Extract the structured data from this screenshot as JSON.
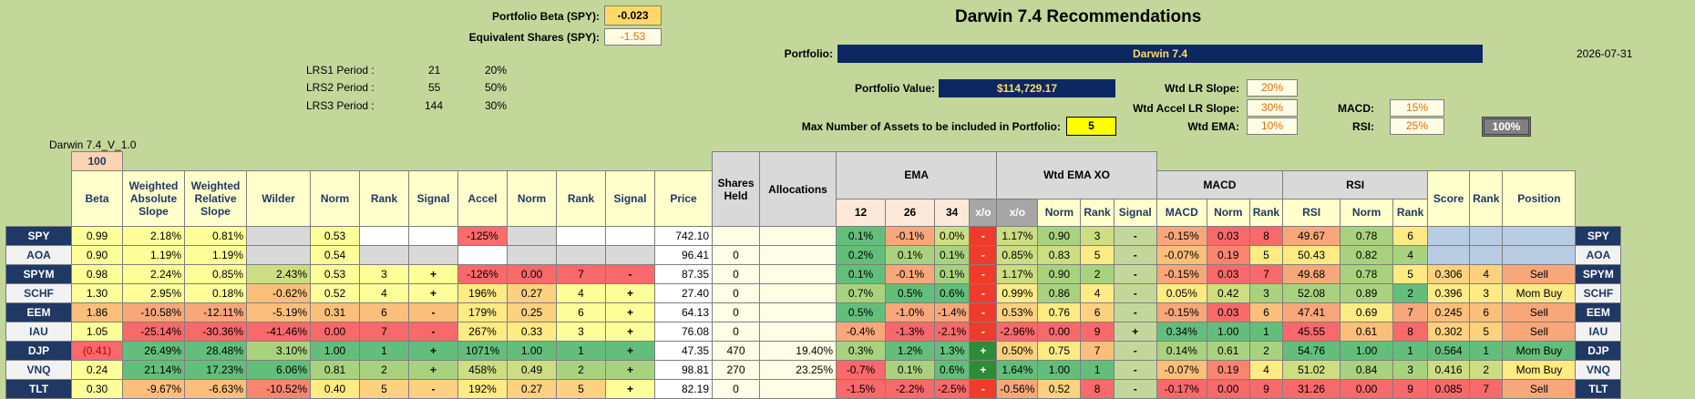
{
  "header": {
    "title": "Darwin 7.4 Recommendations",
    "portfolio_beta_label": "Portfolio Beta (SPY):",
    "portfolio_beta_value": "-0.023",
    "equiv_shares_label": "Equivalent Shares (SPY):",
    "equiv_shares_value": "-1.53",
    "portfolio_label": "Portfolio:",
    "portfolio_value": "Darwin 7.4",
    "date": "2026-07-31",
    "portfolio_value_label": "Portfolio Value:",
    "portfolio_value_amount": "$114,729.17",
    "max_assets_label": "Max Number of Assets to be included in Portfolio:",
    "max_assets_value": "5",
    "version": "Darwin 7.4_V_1.0",
    "lrs": [
      {
        "label": "LRS1 Period :",
        "period": "21",
        "pct": "20%"
      },
      {
        "label": "LRS2 Period :",
        "period": "55",
        "pct": "50%"
      },
      {
        "label": "LRS3 Period :",
        "period": "144",
        "pct": "30%"
      }
    ],
    "weights": {
      "wtd_lr_slope_label": "Wtd LR Slope:",
      "wtd_lr_slope": "20%",
      "wtd_accel_label": "Wtd Accel LR Slope:",
      "wtd_accel": "30%",
      "wtd_ema_label": "Wtd EMA:",
      "wtd_ema": "10%",
      "macd_label": "MACD:",
      "macd": "15%",
      "rsi_label": "RSI:",
      "rsi": "25%",
      "total": "100%"
    }
  },
  "columns": {
    "hundred": "100",
    "beta": "Beta",
    "was": "Weighted Absolute Slope",
    "wrs": "Weighted Relative Slope",
    "wilder": "Wilder",
    "norm": "Norm",
    "rank": "Rank",
    "signal": "Signal",
    "accel": "Accel",
    "price": "Price",
    "shares": "Shares Held",
    "alloc": "Allocations",
    "ema": "EMA",
    "e12": "12",
    "e26": "26",
    "e34": "34",
    "xo": "x/o",
    "wtd_ema_xo": "Wtd EMA XO",
    "macd_grp": "MACD",
    "macd": "MACD",
    "rsi_grp": "RSI",
    "rsi": "RSI",
    "score": "Score",
    "position": "Position"
  },
  "rows": [
    {
      "t": "SPY",
      "beta": "0.99",
      "was": "2.18%",
      "wrs": "0.81%",
      "wilder": "",
      "n1": "0.53",
      "r1": "",
      "s1": "",
      "accel": "-125%",
      "n2": "",
      "r2": "",
      "s2": "",
      "price": "742.10",
      "shares": "",
      "alloc": "",
      "e12": "0.1%",
      "e26": "-0.1%",
      "e34": "0.0%",
      "xo": "-",
      "wx": "1.17%",
      "wxn": "0.90",
      "wxr": "3",
      "wxs": "-",
      "macd": "-0.15%",
      "mn": "0.03",
      "mr": "8",
      "rsi": "49.67",
      "rn": "0.78",
      "rr": "6",
      "score": "",
      "rank": "",
      "pos": "",
      "c": {
        "beta": "#ffff99",
        "was": "#ffff99",
        "wrs": "#ffff99",
        "wilder": "#d9d9d9",
        "n1": "#ffff99",
        "r1": "#ffffff",
        "s1": "#ffffff",
        "accel": "#ff6b6b",
        "n2": "#d9d9d9",
        "r2": "#ffffff",
        "s2": "#ffffff",
        "price": "#ffffff",
        "shares": "#fffde6",
        "alloc": "#fffde6",
        "e12": "#63be7b",
        "e26": "#f8a77b",
        "e34": "#ccdd82",
        "wx": "#ccdd82",
        "wxn": "#a9d27f",
        "wxr": "#ccdd82",
        "macd": "#f8a77b",
        "mn": "#f8696b",
        "mr": "#f8696b",
        "rsi": "#f8a77b",
        "rn": "#a9d27f",
        "rr": "#ffeb84",
        "score": "#b8cce4",
        "rank": "#b8cce4",
        "pos": "#b8cce4"
      }
    },
    {
      "t": "AOA",
      "beta": "0.90",
      "was": "1.19%",
      "wrs": "1.19%",
      "wilder": "",
      "n1": "0.54",
      "r1": "",
      "s1": "",
      "accel": "",
      "n2": "",
      "r2": "",
      "s2": "",
      "price": "96.41",
      "shares": "0",
      "alloc": "",
      "e12": "0.2%",
      "e26": "0.1%",
      "e34": "0.1%",
      "xo": "-",
      "wx": "0.85%",
      "wxn": "0.83",
      "wxr": "5",
      "wxs": "-",
      "macd": "-0.07%",
      "mn": "0.19",
      "mr": "5",
      "rsi": "50.43",
      "rn": "0.82",
      "rr": "4",
      "score": "",
      "rank": "",
      "pos": "",
      "alt": true,
      "c": {
        "beta": "#ffff99",
        "was": "#ffff99",
        "wrs": "#ffff99",
        "wilder": "#d9d9d9",
        "n1": "#ffff99",
        "r1": "#d9d9d9",
        "s1": "#d9d9d9",
        "accel": "#ffffff",
        "n2": "#d9d9d9",
        "r2": "#d9d9d9",
        "s2": "#d9d9d9",
        "price": "#ffffff",
        "shares": "#fffde6",
        "alloc": "#fffde6",
        "e12": "#63be7b",
        "e26": "#a9d27f",
        "e34": "#a9d27f",
        "wx": "#ccdd82",
        "wxn": "#ccdd82",
        "wxr": "#ffeb84",
        "macd": "#fcbf7b",
        "mn": "#f98570",
        "mr": "#ffeb84",
        "rsi": "#ffeb84",
        "rn": "#a9d27f",
        "rr": "#a9d27f",
        "score": "#b8cce4",
        "rank": "#b8cce4",
        "pos": "#b8cce4"
      }
    },
    {
      "t": "SPYM",
      "beta": "0.98",
      "was": "2.24%",
      "wrs": "0.85%",
      "wilder": "2.43%",
      "n1": "0.53",
      "r1": "3",
      "s1": "+",
      "accel": "-126%",
      "n2": "0.00",
      "r2": "7",
      "s2": "-",
      "price": "87.35",
      "shares": "0",
      "alloc": "",
      "e12": "0.1%",
      "e26": "-0.1%",
      "e34": "0.1%",
      "xo": "-",
      "wx": "1.17%",
      "wxn": "0.90",
      "wxr": "2",
      "wxs": "-",
      "macd": "-0.15%",
      "mn": "0.03",
      "mr": "7",
      "rsi": "49.68",
      "rn": "0.78",
      "rr": "5",
      "score": "0.306",
      "rank": "4",
      "pos": "Sell",
      "c": {
        "beta": "#ffff99",
        "was": "#ffff99",
        "wrs": "#ffff99",
        "wilder": "#ccdd82",
        "n1": "#ffff99",
        "r1": "#ffff99",
        "s1": "#ffff99",
        "accel": "#f8696b",
        "n2": "#f8696b",
        "r2": "#f8696b",
        "s2": "#f8696b",
        "price": "#ffffff",
        "shares": "#fffde6",
        "alloc": "#fffde6",
        "e12": "#63be7b",
        "e26": "#f8a77b",
        "e34": "#a9d27f",
        "wx": "#ccdd82",
        "wxn": "#a9d27f",
        "wxr": "#a9d27f",
        "macd": "#f8a77b",
        "mn": "#f8696b",
        "mr": "#f8696b",
        "rsi": "#f8a77b",
        "rn": "#a9d27f",
        "rr": "#ffeb84",
        "score": "#fdd17f",
        "rank": "#fdd17f",
        "pos": "#f8a77b"
      }
    },
    {
      "t": "SCHF",
      "beta": "1.30",
      "was": "2.95%",
      "wrs": "0.18%",
      "wilder": "-0.62%",
      "n1": "0.52",
      "r1": "4",
      "s1": "+",
      "accel": "196%",
      "n2": "0.27",
      "r2": "4",
      "s2": "+",
      "price": "27.40",
      "shares": "0",
      "alloc": "",
      "e12": "0.7%",
      "e26": "0.5%",
      "e34": "0.6%",
      "xo": "-",
      "wx": "0.99%",
      "wxn": "0.86",
      "wxr": "4",
      "wxs": "-",
      "macd": "0.05%",
      "mn": "0.42",
      "mr": "3",
      "rsi": "52.08",
      "rn": "0.89",
      "rr": "2",
      "score": "0.396",
      "rank": "3",
      "pos": "Mom Buy",
      "alt": true,
      "c": {
        "beta": "#ffff99",
        "was": "#ffff99",
        "wrs": "#ffff99",
        "wilder": "#fcbf7b",
        "n1": "#ffff99",
        "r1": "#ffff99",
        "s1": "#ffff99",
        "accel": "#ffeb84",
        "n2": "#fdd17f",
        "r2": "#ffff99",
        "s2": "#ffff99",
        "price": "#ffffff",
        "shares": "#fffde6",
        "alloc": "#fffde6",
        "e12": "#a9d27f",
        "e26": "#63be7b",
        "e34": "#63be7b",
        "wx": "#ffeb84",
        "wxn": "#a9d27f",
        "wxr": "#ffeb84",
        "macd": "#ffeb84",
        "mn": "#ccdd82",
        "mr": "#a9d27f",
        "rsi": "#a9d27f",
        "rn": "#a9d27f",
        "rr": "#63be7b",
        "score": "#ffeb84",
        "rank": "#ffeb84",
        "pos": "#ffeb84"
      }
    },
    {
      "t": "EEM",
      "beta": "1.86",
      "was": "-10.58%",
      "wrs": "-12.11%",
      "wilder": "-5.19%",
      "n1": "0.31",
      "r1": "6",
      "s1": "-",
      "accel": "179%",
      "n2": "0.25",
      "r2": "6",
      "s2": "+",
      "price": "64.13",
      "shares": "0",
      "alloc": "",
      "e12": "0.5%",
      "e26": "-1.0%",
      "e34": "-1.4%",
      "xo": "-",
      "wx": "0.53%",
      "wxn": "0.76",
      "wxr": "6",
      "wxs": "-",
      "macd": "-0.15%",
      "mn": "0.03",
      "mr": "6",
      "rsi": "47.41",
      "rn": "0.69",
      "rr": "7",
      "score": "0.245",
      "rank": "6",
      "pos": "Sell",
      "c": {
        "beta": "#fcbf7b",
        "was": "#f8a77b",
        "wrs": "#f8a77b",
        "wilder": "#fcbf7b",
        "n1": "#fcbf7b",
        "r1": "#fcbf7b",
        "s1": "#fcbf7b",
        "accel": "#ffeb84",
        "n2": "#fdd17f",
        "r2": "#ffff99",
        "s2": "#ffff99",
        "price": "#ffffff",
        "shares": "#fffde6",
        "alloc": "#fffde6",
        "e12": "#63be7b",
        "e26": "#f8a77b",
        "e34": "#f8a77b",
        "wx": "#fdd17f",
        "wxn": "#ffeb84",
        "wxr": "#fdd17f",
        "macd": "#f8a77b",
        "mn": "#f8696b",
        "mr": "#fcbf7b",
        "rsi": "#f8a77b",
        "rn": "#ffeb84",
        "rr": "#f8a77b",
        "score": "#fcbf7b",
        "rank": "#fcbf7b",
        "pos": "#f8a77b"
      }
    },
    {
      "t": "IAU",
      "beta": "1.05",
      "was": "-25.14%",
      "wrs": "-30.36%",
      "wilder": "-41.46%",
      "n1": "0.00",
      "r1": "7",
      "s1": "-",
      "accel": "267%",
      "n2": "0.33",
      "r2": "3",
      "s2": "+",
      "price": "76.08",
      "shares": "0",
      "alloc": "",
      "e12": "-0.4%",
      "e26": "-1.3%",
      "e34": "-2.1%",
      "xo": "-",
      "wx": "-2.96%",
      "wxn": "0.00",
      "wxr": "9",
      "wxs": "+",
      "macd": "0.34%",
      "mn": "1.00",
      "mr": "1",
      "rsi": "45.55",
      "rn": "0.61",
      "rr": "8",
      "score": "0.302",
      "rank": "5",
      "pos": "Sell",
      "alt": true,
      "c": {
        "beta": "#ffff99",
        "was": "#f8696b",
        "wrs": "#f8696b",
        "wilder": "#f8696b",
        "n1": "#f8696b",
        "r1": "#f8696b",
        "s1": "#f8696b",
        "accel": "#ffeb84",
        "n2": "#ffeb84",
        "r2": "#ffff99",
        "s2": "#ffff99",
        "price": "#ffffff",
        "shares": "#fffde6",
        "alloc": "#fffde6",
        "e12": "#f8a77b",
        "e26": "#f8696b",
        "e34": "#f8696b",
        "wx": "#f8696b",
        "wxn": "#f8696b",
        "wxr": "#f8696b",
        "macd": "#63be7b",
        "mn": "#63be7b",
        "mr": "#63be7b",
        "rsi": "#f8696b",
        "rn": "#fcbf7b",
        "rr": "#f8696b",
        "score": "#fdd17f",
        "rank": "#fdd17f",
        "pos": "#f8a77b"
      }
    },
    {
      "t": "DJP",
      "beta": "(0.41)",
      "was": "26.49%",
      "wrs": "28.48%",
      "wilder": "3.10%",
      "n1": "1.00",
      "r1": "1",
      "s1": "+",
      "accel": "1071%",
      "n2": "1.00",
      "r2": "1",
      "s2": "+",
      "price": "47.35",
      "shares": "470",
      "alloc": "19.40%",
      "e12": "0.3%",
      "e26": "1.2%",
      "e34": "1.3%",
      "xo": "+",
      "wx": "0.50%",
      "wxn": "0.75",
      "wxr": "7",
      "wxs": "-",
      "macd": "0.14%",
      "mn": "0.61",
      "mr": "2",
      "rsi": "54.76",
      "rn": "1.00",
      "rr": "1",
      "score": "0.564",
      "rank": "1",
      "pos": "Mom Buy",
      "neg": true,
      "c": {
        "beta": "#f8696b",
        "was": "#63be7b",
        "wrs": "#63be7b",
        "wilder": "#a9d27f",
        "n1": "#63be7b",
        "r1": "#63be7b",
        "s1": "#63be7b",
        "accel": "#63be7b",
        "n2": "#63be7b",
        "r2": "#63be7b",
        "s2": "#63be7b",
        "price": "#ffffff",
        "shares": "#fffde6",
        "alloc": "#fffde6",
        "e12": "#a9d27f",
        "e26": "#63be7b",
        "e34": "#63be7b",
        "wx": "#fdd17f",
        "wxn": "#ffeb84",
        "wxr": "#fcbf7b",
        "macd": "#a9d27f",
        "mn": "#a9d27f",
        "mr": "#a9d27f",
        "rsi": "#63be7b",
        "rn": "#63be7b",
        "rr": "#63be7b",
        "score": "#63be7b",
        "rank": "#63be7b",
        "pos": "#63be7b"
      }
    },
    {
      "t": "VNQ",
      "beta": "0.24",
      "was": "21.14%",
      "wrs": "17.23%",
      "wilder": "6.06%",
      "n1": "0.81",
      "r1": "2",
      "s1": "+",
      "accel": "458%",
      "n2": "0.49",
      "r2": "2",
      "s2": "+",
      "price": "98.81",
      "shares": "270",
      "alloc": "23.25%",
      "e12": "-0.7%",
      "e26": "0.1%",
      "e34": "0.6%",
      "xo": "+",
      "wx": "1.64%",
      "wxn": "1.00",
      "wxr": "1",
      "wxs": "-",
      "macd": "-0.07%",
      "mn": "0.19",
      "mr": "4",
      "rsi": "51.02",
      "rn": "0.84",
      "rr": "3",
      "score": "0.416",
      "rank": "2",
      "pos": "Mom Buy",
      "alt": true,
      "c": {
        "beta": "#ffff99",
        "was": "#63be7b",
        "wrs": "#63be7b",
        "wilder": "#63be7b",
        "n1": "#a9d27f",
        "r1": "#a9d27f",
        "s1": "#a9d27f",
        "accel": "#ccdd82",
        "n2": "#ccdd82",
        "r2": "#a9d27f",
        "s2": "#a9d27f",
        "price": "#ffffff",
        "shares": "#fffde6",
        "alloc": "#fffde6",
        "e12": "#f8696b",
        "e26": "#a9d27f",
        "e34": "#63be7b",
        "wx": "#63be7b",
        "wxn": "#63be7b",
        "wxr": "#63be7b",
        "macd": "#fcbf7b",
        "mn": "#f98570",
        "mr": "#ffeb84",
        "rsi": "#ccdd82",
        "rn": "#a9d27f",
        "rr": "#a9d27f",
        "score": "#ccdd82",
        "rank": "#ccdd82",
        "pos": "#ffeb84"
      }
    },
    {
      "t": "TLT",
      "beta": "0.30",
      "was": "-9.67%",
      "wrs": "-6.63%",
      "wilder": "-10.52%",
      "n1": "0.40",
      "r1": "5",
      "s1": "-",
      "accel": "192%",
      "n2": "0.27",
      "r2": "5",
      "s2": "+",
      "price": "82.19",
      "shares": "0",
      "alloc": "",
      "e12": "-1.5%",
      "e26": "-2.2%",
      "e34": "-2.5%",
      "xo": "-",
      "wx": "-0.56%",
      "wxn": "0.52",
      "wxr": "8",
      "wxs": "-",
      "macd": "-0.17%",
      "mn": "0.00",
      "mr": "9",
      "rsi": "31.26",
      "rn": "0.00",
      "rr": "9",
      "score": "0.085",
      "rank": "7",
      "pos": "Sell",
      "c": {
        "beta": "#ffff99",
        "was": "#fcbf7b",
        "wrs": "#fcbf7b",
        "wilder": "#f98570",
        "n1": "#ffeb84",
        "r1": "#fdd17f",
        "s1": "#fdd17f",
        "accel": "#ffeb84",
        "n2": "#fdd17f",
        "r2": "#fdd17f",
        "s2": "#ffff99",
        "price": "#ffffff",
        "shares": "#fffde6",
        "alloc": "#fffde6",
        "e12": "#f8696b",
        "e26": "#f8696b",
        "e34": "#f8696b",
        "wx": "#f8a77b",
        "wxn": "#fdd17f",
        "wxr": "#f8696b",
        "macd": "#f8696b",
        "mn": "#f8696b",
        "mr": "#f8696b",
        "rsi": "#f8696b",
        "rn": "#f8696b",
        "rr": "#f8696b",
        "score": "#f8696b",
        "rank": "#f8696b",
        "pos": "#f8a77b"
      }
    }
  ]
}
